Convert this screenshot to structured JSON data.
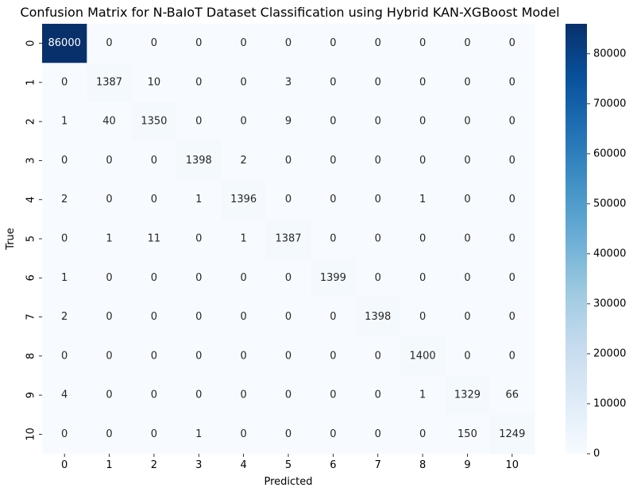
{
  "chart_data": {
    "type": "heatmap",
    "title": "Confusion Matrix for N-BaIoT Dataset Classification using Hybrid KAN-XGBoost Model",
    "xlabel": "Predicted",
    "ylabel": "True",
    "x_categories": [
      "0",
      "1",
      "2",
      "3",
      "4",
      "5",
      "6",
      "7",
      "8",
      "9",
      "10"
    ],
    "y_categories": [
      "0",
      "1",
      "2",
      "3",
      "4",
      "5",
      "6",
      "7",
      "8",
      "9",
      "10"
    ],
    "matrix": [
      [
        86000,
        0,
        0,
        0,
        0,
        0,
        0,
        0,
        0,
        0,
        0
      ],
      [
        0,
        1387,
        10,
        0,
        0,
        3,
        0,
        0,
        0,
        0,
        0
      ],
      [
        1,
        40,
        1350,
        0,
        0,
        9,
        0,
        0,
        0,
        0,
        0
      ],
      [
        0,
        0,
        0,
        1398,
        2,
        0,
        0,
        0,
        0,
        0,
        0
      ],
      [
        2,
        0,
        0,
        1,
        1396,
        0,
        0,
        0,
        1,
        0,
        0
      ],
      [
        0,
        1,
        11,
        0,
        1,
        1387,
        0,
        0,
        0,
        0,
        0
      ],
      [
        1,
        0,
        0,
        0,
        0,
        0,
        1399,
        0,
        0,
        0,
        0
      ],
      [
        2,
        0,
        0,
        0,
        0,
        0,
        0,
        1398,
        0,
        0,
        0
      ],
      [
        0,
        0,
        0,
        0,
        0,
        0,
        0,
        0,
        1400,
        0,
        0
      ],
      [
        4,
        0,
        0,
        0,
        0,
        0,
        0,
        0,
        1,
        1329,
        66
      ],
      [
        0,
        0,
        0,
        1,
        0,
        0,
        0,
        0,
        0,
        150,
        1249
      ]
    ],
    "colormap": "Blues",
    "colorbar": {
      "range": [
        0,
        86000
      ],
      "ticks": [
        0,
        10000,
        20000,
        30000,
        40000,
        50000,
        60000,
        70000,
        80000
      ]
    },
    "colors": {
      "low": "#f7fbff",
      "high": "#08306b"
    }
  }
}
